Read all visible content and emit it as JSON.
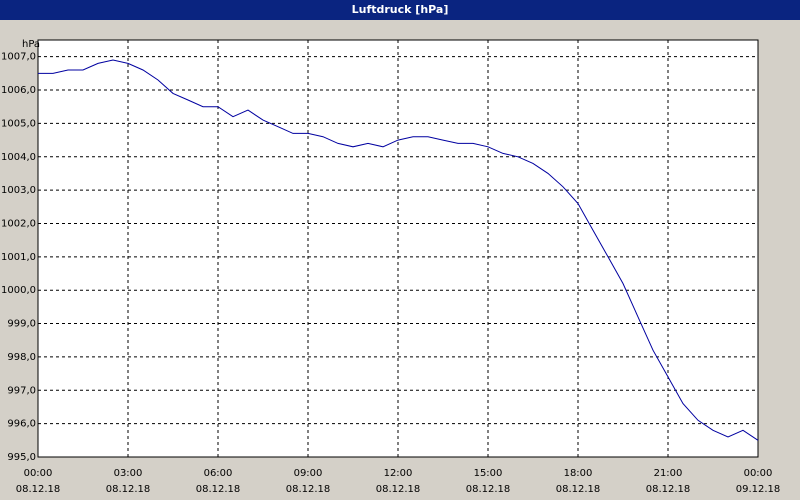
{
  "chart_data": {
    "type": "line",
    "title": "Luftdruck [hPa]",
    "y_label": "hPa",
    "x": [
      "08.12.18 00:00",
      "08.12.18 00:30",
      "08.12.18 01:00",
      "08.12.18 01:30",
      "08.12.18 02:00",
      "08.12.18 02:30",
      "08.12.18 03:00",
      "08.12.18 03:30",
      "08.12.18 04:00",
      "08.12.18 04:30",
      "08.12.18 05:00",
      "08.12.18 05:30",
      "08.12.18 06:00",
      "08.12.18 06:30",
      "08.12.18 07:00",
      "08.12.18 07:30",
      "08.12.18 08:00",
      "08.12.18 08:30",
      "08.12.18 09:00",
      "08.12.18 09:30",
      "08.12.18 10:00",
      "08.12.18 10:30",
      "08.12.18 11:00",
      "08.12.18 11:30",
      "08.12.18 12:00",
      "08.12.18 12:30",
      "08.12.18 13:00",
      "08.12.18 13:30",
      "08.12.18 14:00",
      "08.12.18 14:30",
      "08.12.18 15:00",
      "08.12.18 15:30",
      "08.12.18 16:00",
      "08.12.18 16:30",
      "08.12.18 17:00",
      "08.12.18 17:30",
      "08.12.18 18:00",
      "08.12.18 18:30",
      "08.12.18 19:00",
      "08.12.18 19:30",
      "08.12.18 20:00",
      "08.12.18 20:30",
      "08.12.18 21:00",
      "08.12.18 21:30",
      "08.12.18 22:00",
      "08.12.18 22:30",
      "08.12.18 23:00",
      "08.12.18 23:30",
      "09.12.18 00:00"
    ],
    "series": [
      {
        "name": "Luftdruck",
        "color": "#0000a0",
        "values": [
          1006.5,
          1006.5,
          1006.6,
          1006.6,
          1006.8,
          1006.9,
          1006.8,
          1006.6,
          1006.3,
          1005.9,
          1005.7,
          1005.5,
          1005.5,
          1005.2,
          1005.4,
          1005.1,
          1004.9,
          1004.7,
          1004.7,
          1004.6,
          1004.4,
          1004.3,
          1004.4,
          1004.3,
          1004.5,
          1004.6,
          1004.6,
          1004.5,
          1004.4,
          1004.4,
          1004.3,
          1004.1,
          1004.0,
          1003.8,
          1003.5,
          1003.1,
          1002.6,
          1001.8,
          1001.0,
          1000.2,
          999.2,
          998.2,
          997.4,
          996.6,
          996.1,
          995.8,
          995.6,
          995.8,
          995.5
        ]
      }
    ],
    "xlim": [
      "08.12.18 00:00",
      "09.12.18 00:00"
    ],
    "xticks": [
      {
        "value": "08.12.18 00:00",
        "label": [
          "00:00",
          "08.12.18"
        ]
      },
      {
        "value": "08.12.18 03:00",
        "label": [
          "03:00",
          "08.12.18"
        ]
      },
      {
        "value": "08.12.18 06:00",
        "label": [
          "06:00",
          "08.12.18"
        ]
      },
      {
        "value": "08.12.18 09:00",
        "label": [
          "09:00",
          "08.12.18"
        ]
      },
      {
        "value": "08.12.18 12:00",
        "label": [
          "12:00",
          "08.12.18"
        ]
      },
      {
        "value": "08.12.18 15:00",
        "label": [
          "15:00",
          "08.12.18"
        ]
      },
      {
        "value": "08.12.18 18:00",
        "label": [
          "18:00",
          "08.12.18"
        ]
      },
      {
        "value": "08.12.18 21:00",
        "label": [
          "21:00",
          "08.12.18"
        ]
      },
      {
        "value": "09.12.18 00:00",
        "label": [
          "00:00",
          "09.12.18"
        ]
      }
    ],
    "ylim": [
      995,
      1007.5
    ],
    "yticks": [
      {
        "value": 995,
        "label": "995,0"
      },
      {
        "value": 996,
        "label": "996,0"
      },
      {
        "value": 997,
        "label": "997,0"
      },
      {
        "value": 998,
        "label": "998,0"
      },
      {
        "value": 999,
        "label": "999,0"
      },
      {
        "value": 1000,
        "label": "1000,0"
      },
      {
        "value": 1001,
        "label": "1001,0"
      },
      {
        "value": 1002,
        "label": "1002,0"
      },
      {
        "value": 1003,
        "label": "1003,0"
      },
      {
        "value": 1004,
        "label": "1004,0"
      },
      {
        "value": 1005,
        "label": "1005,0"
      },
      {
        "value": 1006,
        "label": "1006,0"
      },
      {
        "value": 1007,
        "label": "1007,0"
      }
    ],
    "grid": true
  }
}
